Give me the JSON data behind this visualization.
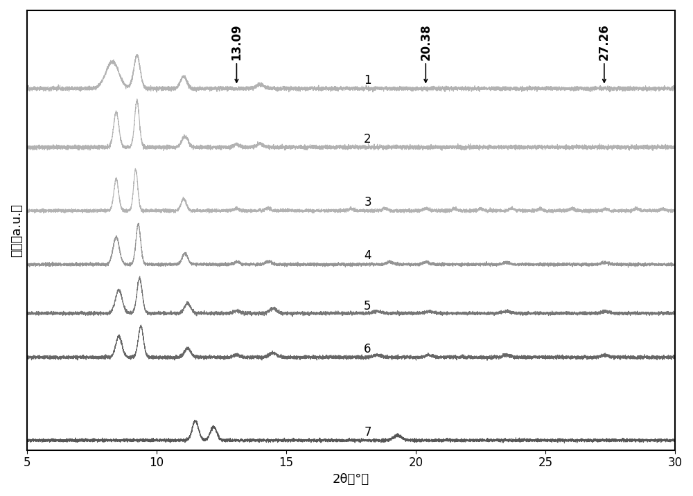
{
  "x_min": 5,
  "x_max": 30,
  "xlabel": "2θ（°）",
  "ylabel": "强度（a.u.）",
  "annotations": [
    {
      "x": 13.09,
      "label": "13.09"
    },
    {
      "x": 20.38,
      "label": "20.38"
    },
    {
      "x": 27.26,
      "label": "27.26"
    }
  ],
  "curve_labels": [
    "1",
    "2",
    "3",
    "4",
    "5",
    "6",
    "7"
  ],
  "offsets": [
    0.72,
    0.6,
    0.47,
    0.36,
    0.26,
    0.17,
    0.0
  ],
  "background_color": "#ffffff",
  "label_fontsize": 13,
  "tick_fontsize": 12,
  "annotation_fontsize": 12,
  "curve_label_fontsize": 12
}
